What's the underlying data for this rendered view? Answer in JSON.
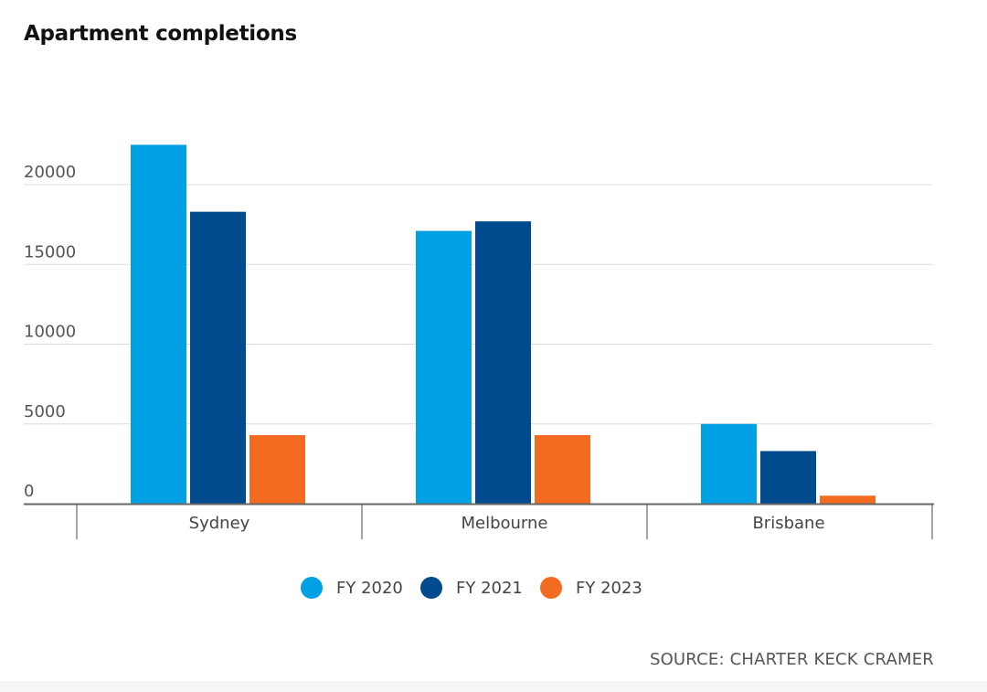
{
  "chart_data": {
    "type": "bar",
    "title": "Apartment completions",
    "categories": [
      "Sydney",
      "Melbourne",
      "Brisbane"
    ],
    "series": [
      {
        "name": "FY 2020",
        "color": "#00a0e4",
        "values": [
          22500,
          17100,
          5000
        ]
      },
      {
        "name": "FY 2021",
        "color": "#004b8d",
        "values": [
          18300,
          17700,
          3300
        ]
      },
      {
        "name": "FY 2023",
        "color": "#f26b21",
        "values": [
          4300,
          4300,
          500
        ]
      }
    ],
    "y_ticks": [
      0,
      5000,
      10000,
      15000,
      20000
    ],
    "ylim": [
      0,
      25000
    ],
    "grid": true,
    "legend_position": "bottom-center",
    "source": "SOURCE: CHARTER KECK CRAMER"
  }
}
